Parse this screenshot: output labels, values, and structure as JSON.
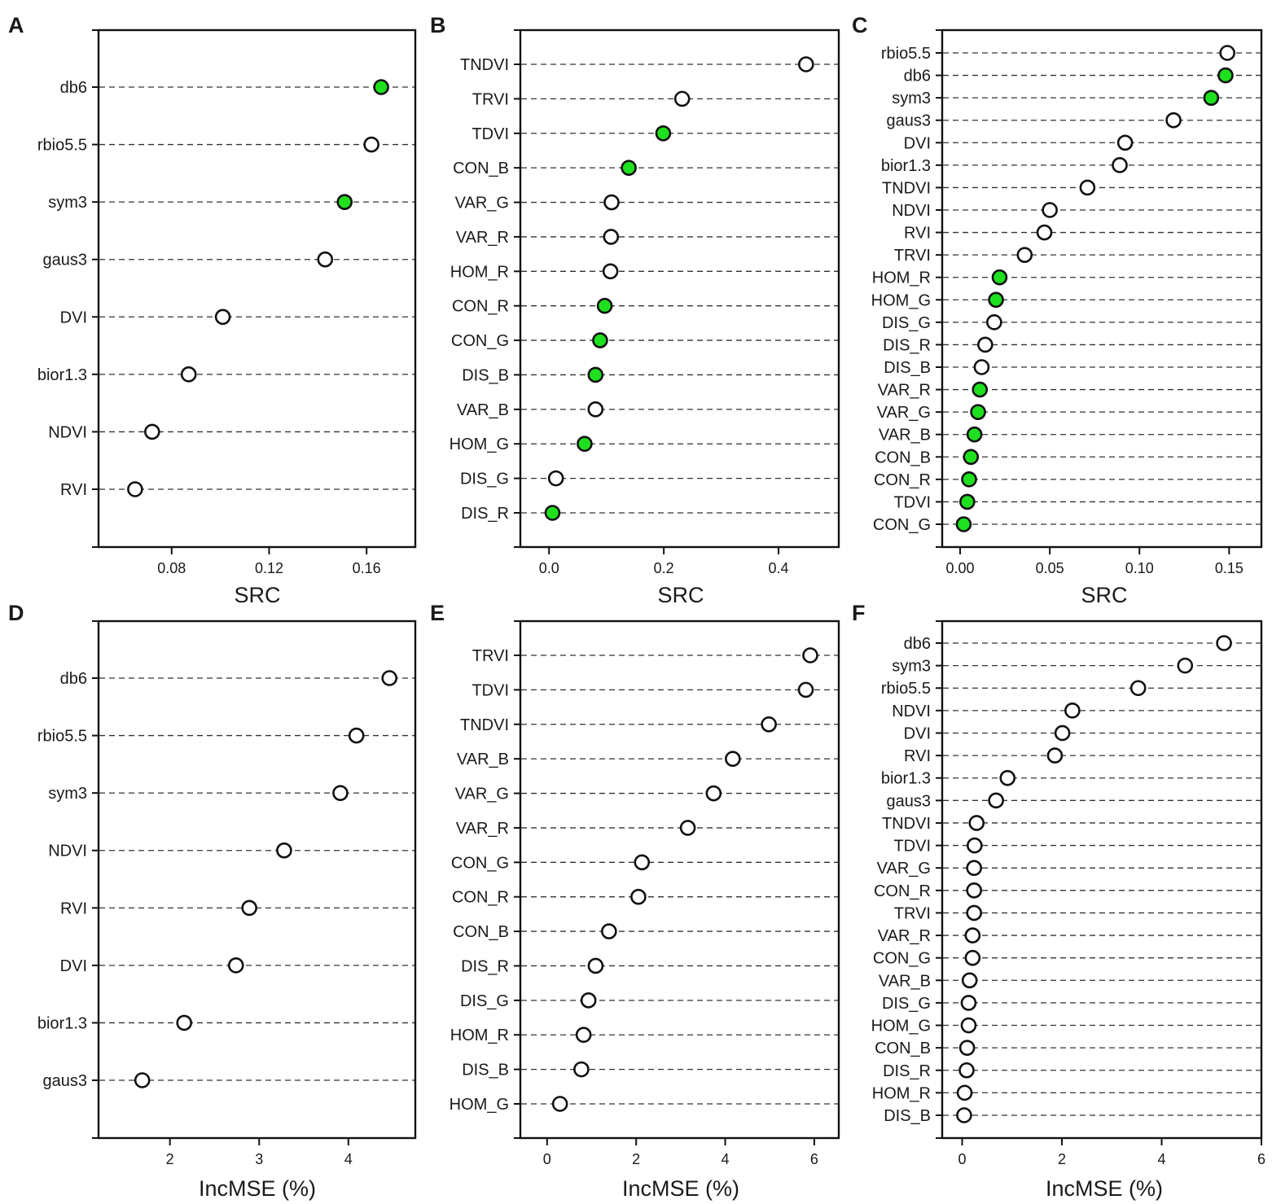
{
  "colors": {
    "highlight": "#1fe01f",
    "open": "#ffffff",
    "stroke": "#111111",
    "grid": "#333333"
  },
  "chart_data": [
    {
      "panel": "A",
      "type": "scatter",
      "style": "dot-plot",
      "xlabel": "SRC",
      "xlim": [
        0.05,
        0.18
      ],
      "xticks": [
        0.08,
        0.12,
        0.16
      ],
      "xtick_labels": [
        "0.08",
        "0.12",
        "0.16"
      ],
      "categories": [
        "db6",
        "rbio5.5",
        "sym3",
        "gaus3",
        "DVI",
        "bior1.3",
        "NDVI",
        "RVI"
      ],
      "values": [
        0.166,
        0.162,
        0.151,
        0.143,
        0.101,
        0.087,
        0.072,
        0.065
      ],
      "highlighted": [
        true,
        false,
        true,
        false,
        false,
        false,
        false,
        false
      ]
    },
    {
      "panel": "B",
      "type": "scatter",
      "style": "dot-plot",
      "xlabel": "SRC",
      "xlim": [
        -0.05,
        0.505
      ],
      "xticks": [
        0.0,
        0.2,
        0.4
      ],
      "xtick_labels": [
        "0.0",
        "0.2",
        "0.4"
      ],
      "categories": [
        "TNDVI",
        "TRVI",
        "TDVI",
        "CON_B",
        "VAR_G",
        "VAR_R",
        "HOM_R",
        "CON_R",
        "CON_G",
        "DIS_B",
        "VAR_B",
        "HOM_G",
        "DIS_G",
        "DIS_R"
      ],
      "values": [
        0.448,
        0.232,
        0.199,
        0.139,
        0.109,
        0.108,
        0.107,
        0.097,
        0.089,
        0.081,
        0.081,
        0.062,
        0.012,
        0.006
      ],
      "highlighted": [
        false,
        false,
        true,
        true,
        false,
        false,
        false,
        true,
        true,
        true,
        false,
        true,
        false,
        true
      ]
    },
    {
      "panel": "C",
      "type": "scatter",
      "style": "dot-plot",
      "xlabel": "SRC",
      "xlim": [
        -0.01,
        0.168
      ],
      "xticks": [
        0.0,
        0.05,
        0.1,
        0.15
      ],
      "xtick_labels": [
        "0.00",
        "0.05",
        "0.10",
        "0.15"
      ],
      "categories": [
        "rbio5.5",
        "db6",
        "sym3",
        "gaus3",
        "DVI",
        "bior1.3",
        "TNDVI",
        "NDVI",
        "RVI",
        "TRVI",
        "HOM_R",
        "HOM_G",
        "DIS_G",
        "DIS_R",
        "DIS_B",
        "VAR_R",
        "VAR_G",
        "VAR_B",
        "CON_B",
        "CON_R",
        "TDVI",
        "CON_G"
      ],
      "values": [
        0.149,
        0.148,
        0.14,
        0.119,
        0.092,
        0.089,
        0.071,
        0.05,
        0.047,
        0.036,
        0.022,
        0.02,
        0.019,
        0.014,
        0.012,
        0.011,
        0.01,
        0.008,
        0.006,
        0.005,
        0.004,
        0.002
      ],
      "highlighted": [
        false,
        true,
        true,
        false,
        false,
        false,
        false,
        false,
        false,
        false,
        true,
        true,
        false,
        false,
        false,
        true,
        true,
        true,
        true,
        true,
        true,
        true
      ]
    },
    {
      "panel": "D",
      "type": "scatter",
      "style": "dot-plot",
      "xlabel": "IncMSE (%)",
      "xlim": [
        1.2,
        4.75
      ],
      "xticks": [
        2,
        3,
        4
      ],
      "xtick_labels": [
        "2",
        "3",
        "4"
      ],
      "categories": [
        "db6",
        "rbio5.5",
        "sym3",
        "NDVI",
        "RVI",
        "DVI",
        "bior1.3",
        "gaus3"
      ],
      "values": [
        4.46,
        4.09,
        3.91,
        3.28,
        2.89,
        2.74,
        2.16,
        1.69
      ],
      "highlighted": [
        false,
        false,
        false,
        false,
        false,
        false,
        false,
        false
      ]
    },
    {
      "panel": "E",
      "type": "scatter",
      "style": "dot-plot",
      "xlabel": "IncMSE (%)",
      "xlim": [
        -0.6,
        6.55
      ],
      "xticks": [
        0,
        2,
        4,
        6
      ],
      "xtick_labels": [
        "0",
        "2",
        "4",
        "6"
      ],
      "categories": [
        "TRVI",
        "TDVI",
        "TNDVI",
        "VAR_B",
        "VAR_G",
        "VAR_R",
        "CON_G",
        "CON_R",
        "CON_B",
        "DIS_R",
        "DIS_G",
        "HOM_R",
        "DIS_B",
        "HOM_G"
      ],
      "values": [
        5.91,
        5.81,
        4.98,
        4.17,
        3.74,
        3.16,
        2.13,
        2.05,
        1.39,
        1.09,
        0.93,
        0.82,
        0.77,
        0.29
      ],
      "highlighted": [
        false,
        false,
        false,
        false,
        false,
        false,
        false,
        false,
        false,
        false,
        false,
        false,
        false,
        false
      ]
    },
    {
      "panel": "F",
      "type": "scatter",
      "style": "dot-plot",
      "xlabel": "IncMSE (%)",
      "xlim": [
        -0.4,
        6.0
      ],
      "xticks": [
        0,
        2,
        4,
        6
      ],
      "xtick_labels": [
        "0",
        "2",
        "4",
        "6"
      ],
      "categories": [
        "db6",
        "sym3",
        "rbio5.5",
        "NDVI",
        "DVI",
        "RVI",
        "bior1.3",
        "gaus3",
        "TNDVI",
        "TDVI",
        "VAR_G",
        "CON_R",
        "TRVI",
        "VAR_R",
        "CON_G",
        "VAR_B",
        "DIS_G",
        "HOM_G",
        "CON_B",
        "DIS_R",
        "HOM_R",
        "DIS_B"
      ],
      "values": [
        5.25,
        4.47,
        3.53,
        2.21,
        2.01,
        1.86,
        0.91,
        0.68,
        0.29,
        0.25,
        0.24,
        0.24,
        0.24,
        0.21,
        0.21,
        0.15,
        0.13,
        0.13,
        0.1,
        0.09,
        0.05,
        0.04
      ],
      "highlighted": [
        false,
        false,
        false,
        false,
        false,
        false,
        false,
        false,
        false,
        false,
        false,
        false,
        false,
        false,
        false,
        false,
        false,
        false,
        false,
        false,
        false,
        false
      ]
    }
  ]
}
